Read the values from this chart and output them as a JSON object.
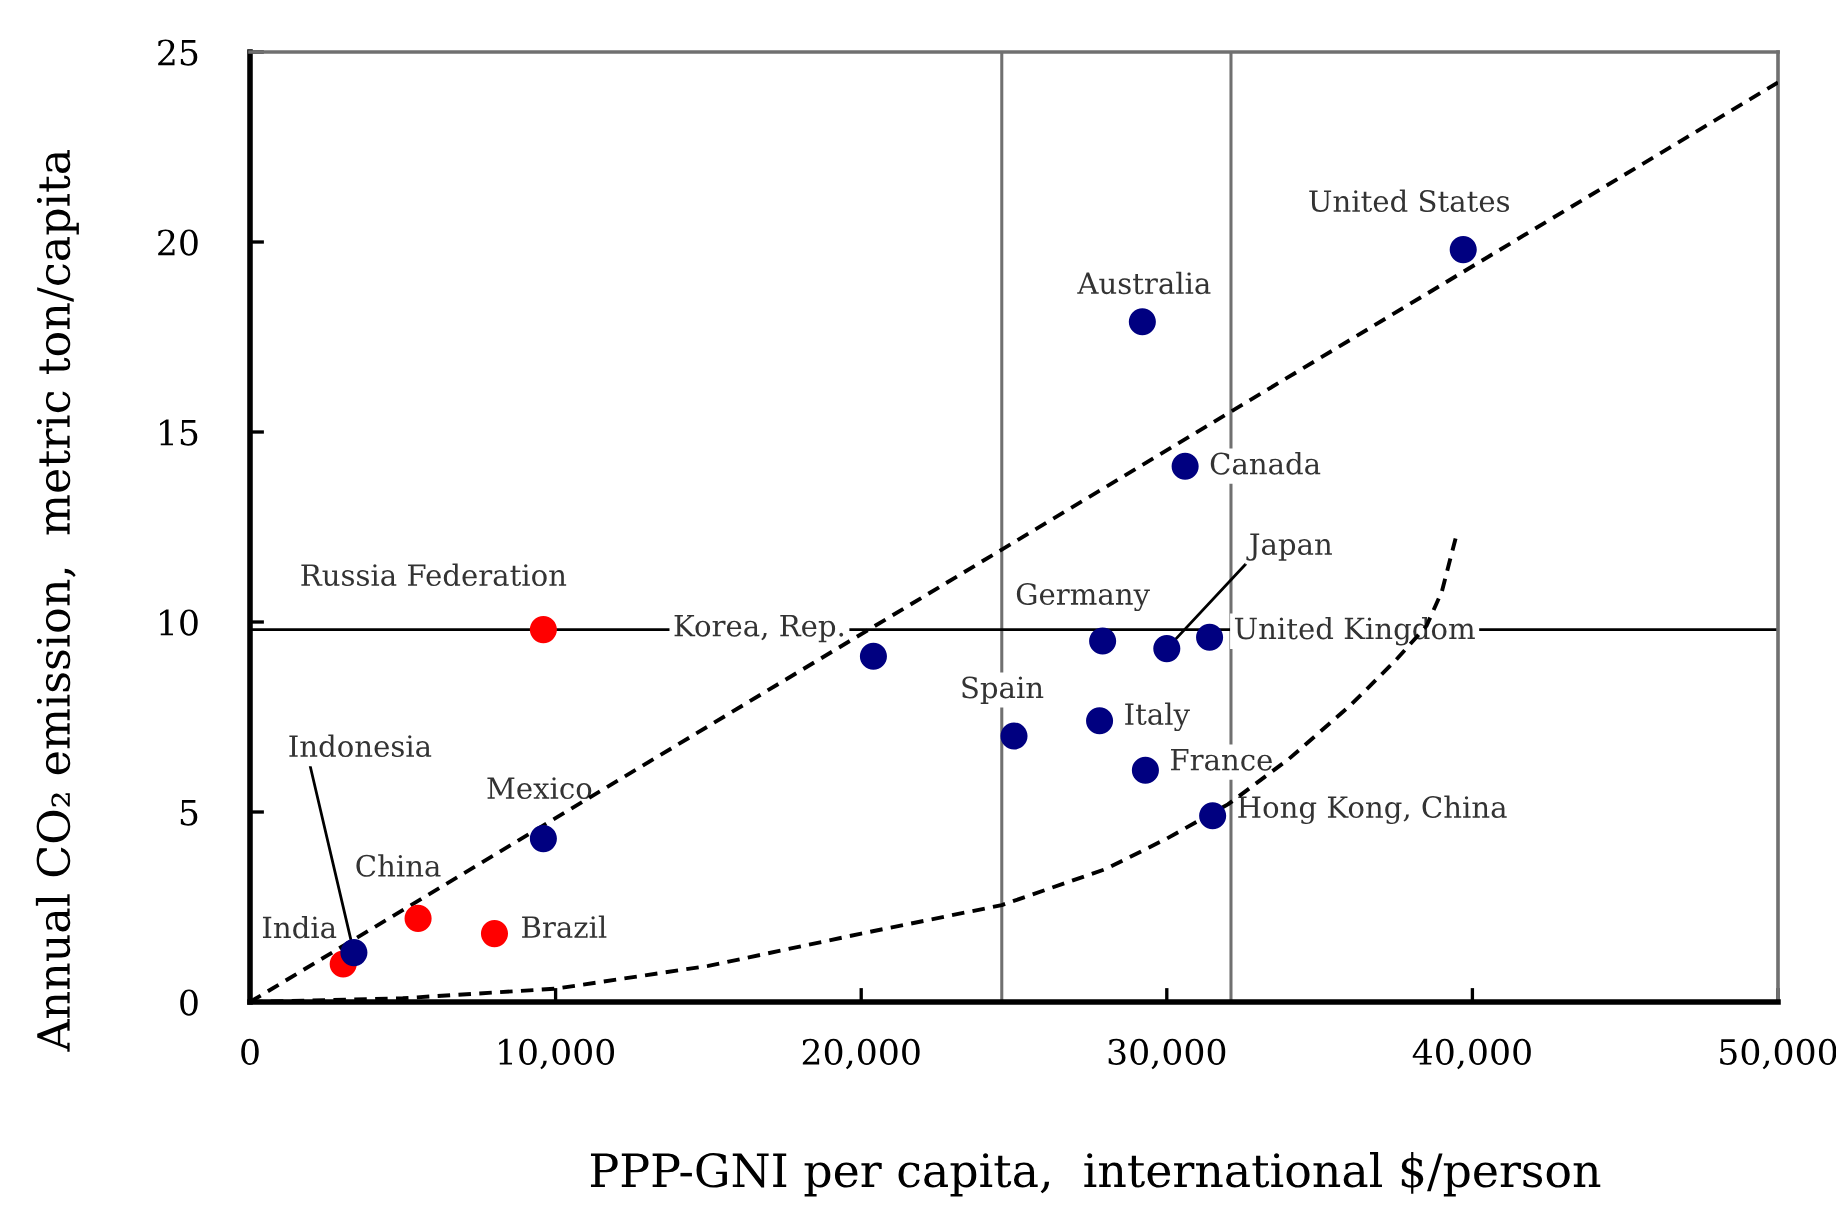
{
  "chart_data": {
    "type": "scatter",
    "xlabel": "PPP-GNI per capita,  international $/person",
    "ylabel": "Annual CO₂ emission,  metric ton/capita",
    "xlim": [
      0,
      50000
    ],
    "ylim": [
      0,
      25
    ],
    "xticks": [
      0,
      {
        "value": 10000,
        "label": "10,000"
      },
      {
        "value": 20000,
        "label": "20,000"
      },
      {
        "value": 30000,
        "label": "30,000"
      },
      {
        "value": 40000,
        "label": "40,000"
      },
      {
        "value": 50000,
        "label": "50,000"
      }
    ],
    "yticks": [
      0,
      5,
      10,
      15,
      20,
      25
    ],
    "marker": "circle",
    "series": [
      {
        "color": "#ff0000",
        "x": [
          3050,
          5500,
          8000,
          9600
        ],
        "values": [
          1.0,
          2.2,
          1.8,
          9.8
        ]
      },
      {
        "color": "#000080",
        "x": [
          3400,
          9600,
          20400,
          25000,
          27900,
          27800,
          30000,
          31400,
          29300,
          31500,
          30600,
          29200,
          39700
        ],
        "values": [
          1.3,
          4.3,
          9.1,
          7.0,
          9.5,
          7.4,
          9.3,
          9.6,
          6.1,
          4.9,
          14.1,
          17.9,
          19.8
        ]
      },
      {
        "type": "line",
        "line_style": "dashed",
        "marker": "none",
        "color": "#000000",
        "x": [
          0,
          50000
        ],
        "values": [
          0,
          24.2
        ]
      },
      {
        "type": "line",
        "line_style": "dashed",
        "marker": "none",
        "color": "#000000",
        "x": [
          0,
          5000,
          10000,
          15000,
          20000,
          24600,
          28000,
          30000,
          32000,
          34000,
          36000,
          37500,
          38500,
          39000,
          39450
        ],
        "values": [
          0,
          0.1,
          0.35,
          0.95,
          1.8,
          2.55,
          3.5,
          4.3,
          5.2,
          6.4,
          7.8,
          9.0,
          9.9,
          10.8,
          12.2
        ]
      }
    ],
    "ref_lines": [
      {
        "axis": "x",
        "value": 24600,
        "color": "#707070"
      },
      {
        "axis": "x",
        "value": 32100,
        "color": "#707070"
      },
      {
        "axis": "y",
        "value": 9.8,
        "color": "#000000"
      }
    ],
    "annotations": [
      {
        "text": "Russia Federation",
        "x": 9600,
        "y": 9.8
      },
      {
        "text": "Korea, Rep.",
        "x": 20400,
        "y": 9.1
      },
      {
        "text": "Indonesia",
        "x": 3400,
        "y": 1.3
      },
      {
        "text": "Mexico",
        "x": 9600,
        "y": 4.3
      },
      {
        "text": "China",
        "x": 5500,
        "y": 2.2
      },
      {
        "text": "India",
        "x": 3050,
        "y": 1.0
      },
      {
        "text": "Brazil",
        "x": 8000,
        "y": 1.8
      },
      {
        "text": "Spain",
        "x": 25000,
        "y": 7.0
      },
      {
        "text": "Germany",
        "x": 27900,
        "y": 9.5
      },
      {
        "text": "Japan",
        "x": 30000,
        "y": 9.3
      },
      {
        "text": "United Kingdom",
        "x": 31400,
        "y": 9.6
      },
      {
        "text": "Italy",
        "x": 27800,
        "y": 7.4
      },
      {
        "text": "France",
        "x": 29300,
        "y": 6.1
      },
      {
        "text": "Hong Kong, China",
        "x": 31500,
        "y": 4.9
      },
      {
        "text": "Canada",
        "x": 30600,
        "y": 14.1
      },
      {
        "text": "Australia",
        "x": 29200,
        "y": 17.9
      },
      {
        "text": "United States",
        "x": 39700,
        "y": 19.8
      }
    ]
  }
}
